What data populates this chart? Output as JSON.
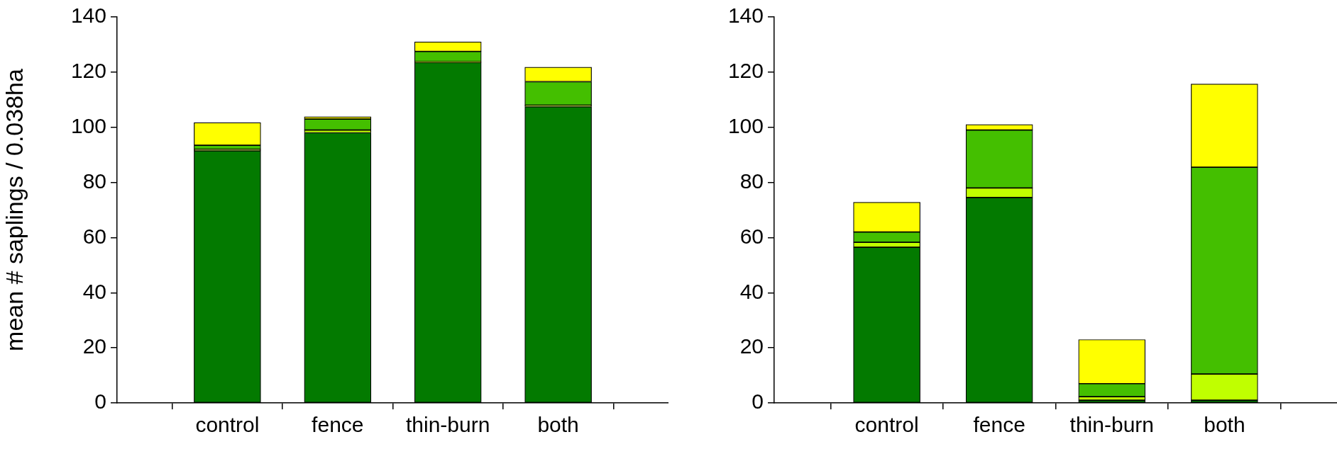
{
  "chart_data": [
    {
      "type": "bar",
      "stacked": true,
      "ylabel": "mean # saplings / 0.038ha",
      "categories": [
        "control",
        "fence",
        "thin-burn",
        "both"
      ],
      "ylim": [
        0,
        140
      ],
      "yticks": [
        0,
        20,
        40,
        60,
        80,
        100,
        120,
        140
      ],
      "grid": false,
      "legend": false,
      "series": [
        {
          "color": "#037a00",
          "values": [
            91.5,
            98,
            123.5,
            107.5
          ]
        },
        {
          "color": "#c0ff00",
          "values": [
            0.5,
            1,
            0.3,
            0.5
          ]
        },
        {
          "color": "#44bf00",
          "values": [
            1.5,
            4,
            3.7,
            8.5
          ]
        },
        {
          "color": "#ffff00",
          "values": [
            8.2,
            0.8,
            3.5,
            5.3
          ]
        }
      ]
    },
    {
      "type": "bar",
      "stacked": true,
      "categories": [
        "control",
        "fence",
        "thin-burn",
        "both"
      ],
      "ylim": [
        0,
        140
      ],
      "yticks": [
        0,
        20,
        40,
        60,
        80,
        100,
        120,
        140
      ],
      "grid": false,
      "legend": false,
      "series": [
        {
          "color": "#037a00",
          "values": [
            56.5,
            74.5,
            1,
            1
          ]
        },
        {
          "color": "#c0ff00",
          "values": [
            1.8,
            3.5,
            1.3,
            9.5
          ]
        },
        {
          "color": "#44bf00",
          "values": [
            3.7,
            21,
            4.7,
            75
          ]
        },
        {
          "color": "#ffff00",
          "values": [
            10.8,
            2,
            16,
            30.2
          ]
        }
      ]
    }
  ]
}
